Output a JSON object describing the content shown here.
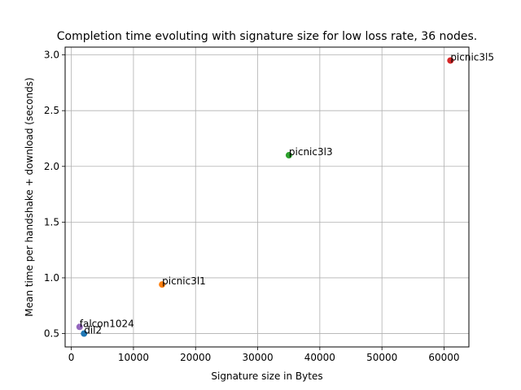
{
  "chart_data": {
    "type": "scatter",
    "title": "Completion time evoluting with signature size for low loss rate, 36 nodes.",
    "xlabel": "Signature size in Bytes",
    "ylabel": "Mean time per handshake + download (seconds)",
    "xlim": [
      -1000,
      64000
    ],
    "ylim": [
      0.38,
      3.07
    ],
    "xticks": [
      0,
      10000,
      20000,
      30000,
      40000,
      50000,
      60000
    ],
    "yticks": [
      0.5,
      1.0,
      1.5,
      2.0,
      2.5,
      3.0
    ],
    "xtick_labels": [
      "0",
      "10000",
      "20000",
      "30000",
      "40000",
      "50000",
      "60000"
    ],
    "ytick_labels": [
      "0.5",
      "1.0",
      "1.5",
      "2.0",
      "2.5",
      "3.0"
    ],
    "grid": true,
    "legend": "none",
    "points": [
      {
        "label": "dil2",
        "x": 2044,
        "y": 0.5,
        "color": "#1f77b4"
      },
      {
        "label": "picnic3l1",
        "x": 14612,
        "y": 0.94,
        "color": "#ff7f0e"
      },
      {
        "label": "picnic3l3",
        "x": 35028,
        "y": 2.1,
        "color": "#2ca02c"
      },
      {
        "label": "picnic3l5",
        "x": 61028,
        "y": 2.95,
        "color": "#d62728"
      },
      {
        "label": "falcon1024",
        "x": 1330,
        "y": 0.56,
        "color": "#9467bd"
      }
    ]
  }
}
